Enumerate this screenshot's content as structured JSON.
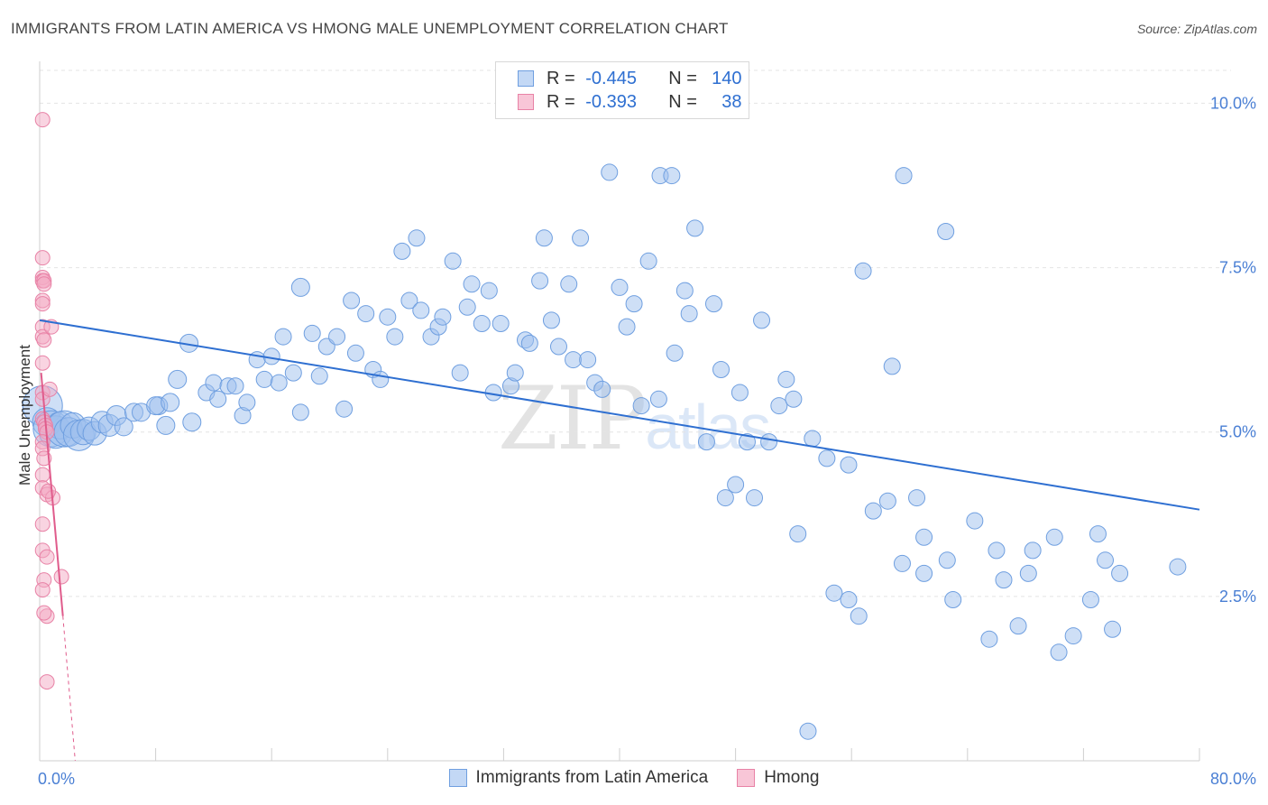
{
  "header": {
    "title": "IMMIGRANTS FROM LATIN AMERICA VS HMONG MALE UNEMPLOYMENT CORRELATION CHART",
    "source": "Source: ZipAtlas.com"
  },
  "watermark": {
    "zip": "ZIP",
    "atlas": "atlas"
  },
  "legend": {
    "rows": [
      {
        "r_label": "R =",
        "r_value": "-0.445",
        "n_label": "N =",
        "n_value": "140",
        "color": "#9dc0ee"
      },
      {
        "r_label": "R =",
        "r_value": "-0.393",
        "n_label": "N =",
        "n_value": "38",
        "color": "#f4aac4"
      }
    ]
  },
  "chart_data": {
    "type": "scatter",
    "ylabel": "Male Unemployment",
    "xlim": [
      0,
      80
    ],
    "ylim": [
      0,
      10.5
    ],
    "x_tick_labels": [
      "0.0%",
      "80.0%"
    ],
    "y_ticks": [
      {
        "value": 2.5,
        "label": "2.5%"
      },
      {
        "value": 5.0,
        "label": "5.0%"
      },
      {
        "value": 7.5,
        "label": "7.5%"
      },
      {
        "value": 10.0,
        "label": "10.0%"
      }
    ],
    "grid": true,
    "series": [
      {
        "name": "Immigrants from Latin America",
        "color": "#9dc0ee",
        "stroke": "#6f9fe0",
        "trend": {
          "x1": 0,
          "y1": 6.7,
          "x2": 80,
          "y2": 3.82,
          "color": "#2e6fd1"
        },
        "points": [
          [
            0.2,
            5.4,
            22
          ],
          [
            0.5,
            5.15,
            16
          ],
          [
            0.8,
            5.05,
            20
          ],
          [
            1.1,
            5.0,
            18
          ],
          [
            1.4,
            5.1,
            15
          ],
          [
            1.7,
            5.05,
            20
          ],
          [
            2.0,
            5.0,
            16
          ],
          [
            2.3,
            5.1,
            14
          ],
          [
            2.7,
            4.95,
            17
          ],
          [
            3.0,
            5.0,
            14
          ],
          [
            3.4,
            5.05,
            13
          ],
          [
            3.8,
            4.98,
            13
          ],
          [
            4.3,
            5.15,
            12
          ],
          [
            4.8,
            5.1,
            12
          ],
          [
            5.3,
            5.25,
            11
          ],
          [
            5.8,
            5.08,
            10
          ],
          [
            6.5,
            5.3,
            10
          ],
          [
            7.0,
            5.3,
            10
          ],
          [
            8.2,
            5.4,
            10
          ],
          [
            8.0,
            5.4,
            10
          ],
          [
            8.7,
            5.1,
            10
          ],
          [
            9.0,
            5.45,
            10
          ],
          [
            9.5,
            5.8,
            10
          ],
          [
            10.5,
            5.15,
            10
          ],
          [
            10.3,
            6.35,
            10
          ],
          [
            11.5,
            5.6,
            9
          ],
          [
            12.0,
            5.75,
            9
          ],
          [
            12.3,
            5.5,
            9
          ],
          [
            13.0,
            5.7,
            9
          ],
          [
            13.5,
            5.7,
            9
          ],
          [
            14.0,
            5.25,
            9
          ],
          [
            14.3,
            5.45,
            9
          ],
          [
            15.0,
            6.1,
            9
          ],
          [
            15.5,
            5.8,
            9
          ],
          [
            16.5,
            5.75,
            9
          ],
          [
            16.0,
            6.15,
            9
          ],
          [
            16.8,
            6.45,
            9
          ],
          [
            17.5,
            5.9,
            9
          ],
          [
            18.0,
            7.2,
            10
          ],
          [
            18.0,
            5.3,
            9
          ],
          [
            18.8,
            6.5,
            9
          ],
          [
            19.3,
            5.85,
            9
          ],
          [
            19.8,
            6.3,
            9
          ],
          [
            20.5,
            6.45,
            9
          ],
          [
            21.0,
            5.35,
            9
          ],
          [
            21.8,
            6.2,
            9
          ],
          [
            21.5,
            7.0,
            9
          ],
          [
            22.5,
            6.8,
            9
          ],
          [
            23.0,
            5.95,
            9
          ],
          [
            23.5,
            5.8,
            9
          ],
          [
            24.0,
            6.75,
            9
          ],
          [
            24.5,
            6.45,
            9
          ],
          [
            25.0,
            7.75,
            9
          ],
          [
            25.5,
            7.0,
            9
          ],
          [
            26.0,
            7.95,
            9
          ],
          [
            26.3,
            6.85,
            9
          ],
          [
            27.0,
            6.45,
            9
          ],
          [
            27.5,
            6.6,
            9
          ],
          [
            27.8,
            6.75,
            9
          ],
          [
            28.5,
            7.6,
            9
          ],
          [
            29.0,
            5.9,
            9
          ],
          [
            29.5,
            6.9,
            9
          ],
          [
            29.8,
            7.25,
            9
          ],
          [
            30.5,
            6.65,
            9
          ],
          [
            31.0,
            7.15,
            9
          ],
          [
            31.3,
            5.6,
            9
          ],
          [
            31.8,
            6.65,
            9
          ],
          [
            32.5,
            5.7,
            9
          ],
          [
            32.8,
            5.9,
            9
          ],
          [
            33.5,
            6.4,
            9
          ],
          [
            33.8,
            6.35,
            9
          ],
          [
            34.5,
            7.3,
            9
          ],
          [
            34.8,
            7.95,
            9
          ],
          [
            35.3,
            6.7,
            9
          ],
          [
            35.8,
            6.3,
            9
          ],
          [
            36.5,
            7.25,
            9
          ],
          [
            36.8,
            6.1,
            9
          ],
          [
            37.3,
            7.95,
            9
          ],
          [
            37.8,
            6.1,
            9
          ],
          [
            38.3,
            5.75,
            9
          ],
          [
            38.8,
            5.65,
            9
          ],
          [
            39.3,
            8.95,
            9
          ],
          [
            40.0,
            7.2,
            9
          ],
          [
            40.5,
            6.6,
            9
          ],
          [
            41.0,
            6.95,
            9
          ],
          [
            41.5,
            5.4,
            9
          ],
          [
            42.0,
            7.6,
            9
          ],
          [
            42.7,
            5.5,
            9
          ],
          [
            42.8,
            8.9,
            9
          ],
          [
            43.6,
            8.9,
            9
          ],
          [
            43.8,
            6.2,
            9
          ],
          [
            44.5,
            7.15,
            9
          ],
          [
            44.8,
            6.8,
            9
          ],
          [
            45.2,
            8.1,
            9
          ],
          [
            46.0,
            4.85,
            9
          ],
          [
            46.5,
            6.95,
            9
          ],
          [
            47.0,
            5.95,
            9
          ],
          [
            47.3,
            4.0,
            9
          ],
          [
            48.0,
            4.2,
            9
          ],
          [
            48.3,
            5.6,
            9
          ],
          [
            48.8,
            4.85,
            9
          ],
          [
            49.3,
            4.0,
            9
          ],
          [
            49.8,
            6.7,
            9
          ],
          [
            50.3,
            4.85,
            9
          ],
          [
            51.0,
            5.4,
            9
          ],
          [
            51.5,
            5.8,
            9
          ],
          [
            52.0,
            5.5,
            9
          ],
          [
            52.3,
            3.45,
            9
          ],
          [
            53.3,
            4.9,
            9
          ],
          [
            54.3,
            4.6,
            9
          ],
          [
            54.8,
            2.55,
            9
          ],
          [
            55.8,
            2.45,
            9
          ],
          [
            55.8,
            4.5,
            9
          ],
          [
            56.5,
            2.2,
            9
          ],
          [
            56.8,
            7.45,
            9
          ],
          [
            57.5,
            3.8,
            9
          ],
          [
            58.5,
            3.95,
            9
          ],
          [
            58.8,
            6.0,
            9
          ],
          [
            59.5,
            3.0,
            9
          ],
          [
            59.6,
            8.9,
            9
          ],
          [
            60.5,
            4.0,
            9
          ],
          [
            61.0,
            3.4,
            9
          ],
          [
            61.0,
            2.85,
            9
          ],
          [
            62.5,
            8.05,
            9
          ],
          [
            62.6,
            3.05,
            9
          ],
          [
            63.0,
            2.45,
            9
          ],
          [
            64.5,
            3.65,
            9
          ],
          [
            65.5,
            1.85,
            9
          ],
          [
            66.0,
            3.2,
            9
          ],
          [
            66.5,
            2.75,
            9
          ],
          [
            67.5,
            2.05,
            9
          ],
          [
            68.2,
            2.85,
            9
          ],
          [
            68.5,
            3.2,
            9
          ],
          [
            70.0,
            3.4,
            9
          ],
          [
            70.3,
            1.65,
            9
          ],
          [
            71.3,
            1.9,
            9
          ],
          [
            72.5,
            2.45,
            9
          ],
          [
            73.0,
            3.45,
            9
          ],
          [
            73.5,
            3.05,
            9
          ],
          [
            74.0,
            2.0,
            9
          ],
          [
            74.5,
            2.85,
            9
          ],
          [
            78.5,
            2.95,
            9
          ],
          [
            53.0,
            0.45,
            9
          ]
        ]
      },
      {
        "name": "Hmong",
        "color": "#f4aac4",
        "stroke": "#e882a6",
        "trend": {
          "x1": 0.1,
          "y1": 5.9,
          "x2": 1.6,
          "y2": 2.2,
          "dash_to_x": 2.45,
          "dash_to_y": 0.0,
          "color": "#e05c8c"
        },
        "points": [
          [
            0.2,
            9.75,
            8
          ],
          [
            0.2,
            7.65,
            8
          ],
          [
            0.2,
            7.35,
            8
          ],
          [
            0.2,
            7.3,
            8
          ],
          [
            0.3,
            7.3,
            8
          ],
          [
            0.3,
            7.25,
            8
          ],
          [
            0.2,
            7.0,
            8
          ],
          [
            0.2,
            6.95,
            8
          ],
          [
            0.2,
            6.6,
            8
          ],
          [
            0.2,
            6.45,
            8
          ],
          [
            0.3,
            6.4,
            8
          ],
          [
            0.2,
            6.05,
            8
          ],
          [
            0.2,
            5.6,
            8
          ],
          [
            0.2,
            5.5,
            8
          ],
          [
            0.2,
            5.2,
            8
          ],
          [
            0.3,
            5.15,
            8
          ],
          [
            0.4,
            5.1,
            8
          ],
          [
            0.4,
            5.05,
            8
          ],
          [
            0.5,
            5.0,
            8
          ],
          [
            0.2,
            4.85,
            8
          ],
          [
            0.2,
            4.75,
            8
          ],
          [
            0.3,
            4.6,
            8
          ],
          [
            0.2,
            4.35,
            8
          ],
          [
            0.2,
            4.15,
            8
          ],
          [
            0.5,
            4.05,
            8
          ],
          [
            0.9,
            4.0,
            8
          ],
          [
            0.2,
            3.6,
            8
          ],
          [
            0.2,
            3.2,
            8
          ],
          [
            0.5,
            3.1,
            8
          ],
          [
            0.3,
            2.75,
            8
          ],
          [
            1.5,
            2.8,
            8
          ],
          [
            0.2,
            2.6,
            8
          ],
          [
            0.5,
            2.2,
            8
          ],
          [
            0.3,
            2.25,
            8
          ],
          [
            0.5,
            1.2,
            8
          ],
          [
            0.7,
            5.65,
            8
          ],
          [
            0.8,
            6.6,
            8
          ],
          [
            0.6,
            4.1,
            8
          ]
        ]
      }
    ]
  }
}
